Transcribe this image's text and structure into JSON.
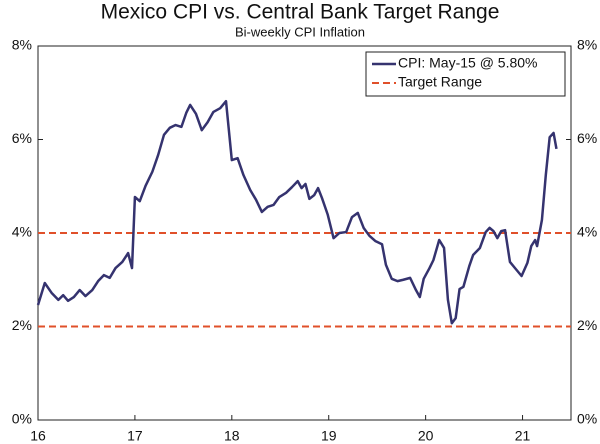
{
  "chart_data": {
    "type": "line",
    "title": "Mexico CPI vs. Central Bank Target Range",
    "subtitle": "Bi-weekly CPI Inflation",
    "x": [
      16.0,
      16.07,
      16.14,
      16.21,
      16.26,
      16.31,
      16.37,
      16.43,
      16.49,
      16.56,
      16.62,
      16.68,
      16.74,
      16.8,
      16.87,
      16.93,
      16.97,
      17.0,
      17.05,
      17.11,
      17.18,
      17.24,
      17.3,
      17.36,
      17.42,
      17.48,
      17.53,
      17.57,
      17.63,
      17.69,
      17.75,
      17.81,
      17.88,
      17.94,
      18.0,
      18.06,
      18.12,
      18.19,
      18.25,
      18.31,
      18.37,
      18.43,
      18.49,
      18.56,
      18.62,
      18.68,
      18.72,
      18.76,
      18.8,
      18.85,
      18.89,
      18.93,
      18.99,
      19.05,
      19.11,
      19.18,
      19.24,
      19.3,
      19.36,
      19.42,
      19.48,
      19.55,
      19.59,
      19.65,
      19.71,
      19.77,
      19.84,
      19.9,
      19.94,
      19.98,
      20.04,
      20.08,
      20.14,
      20.19,
      20.23,
      20.27,
      20.31,
      20.35,
      20.39,
      20.45,
      20.49,
      20.56,
      20.62,
      20.66,
      20.7,
      20.74,
      20.78,
      20.82,
      20.87,
      20.93,
      20.99,
      21.05,
      21.09,
      21.13,
      21.15,
      21.2,
      21.24,
      21.28,
      21.32,
      21.35
    ],
    "series": [
      {
        "name": "CPI: May-15 @ 5.80%",
        "color": "#35336f",
        "values": [
          2.46,
          2.93,
          2.72,
          2.57,
          2.67,
          2.55,
          2.63,
          2.78,
          2.65,
          2.78,
          2.97,
          3.1,
          3.04,
          3.25,
          3.38,
          3.57,
          3.25,
          4.77,
          4.68,
          5.01,
          5.31,
          5.67,
          6.1,
          6.25,
          6.31,
          6.27,
          6.57,
          6.74,
          6.55,
          6.2,
          6.37,
          6.59,
          6.67,
          6.82,
          5.56,
          5.6,
          5.24,
          4.92,
          4.71,
          4.45,
          4.56,
          4.6,
          4.77,
          4.86,
          4.98,
          5.11,
          4.96,
          5.05,
          4.73,
          4.81,
          4.96,
          4.75,
          4.39,
          3.89,
          4.0,
          4.02,
          4.34,
          4.43,
          4.11,
          3.94,
          3.83,
          3.76,
          3.32,
          3.02,
          2.97,
          3.0,
          3.04,
          2.78,
          2.63,
          3.02,
          3.25,
          3.42,
          3.85,
          3.68,
          2.57,
          2.07,
          2.18,
          2.8,
          2.85,
          3.29,
          3.53,
          3.68,
          4.02,
          4.11,
          4.04,
          3.89,
          4.04,
          4.06,
          3.38,
          3.23,
          3.08,
          3.36,
          3.72,
          3.85,
          3.72,
          4.28,
          5.24,
          6.05,
          6.14,
          5.8
        ]
      }
    ],
    "target_range": {
      "name": "Target Range",
      "color": "#e0502a",
      "values": [
        2,
        4
      ]
    },
    "xlim": [
      16,
      21.5
    ],
    "xticks": [
      16,
      17,
      18,
      19,
      20,
      21
    ],
    "ylim": [
      0,
      8
    ],
    "yticks": [
      {
        "value": 0,
        "label": "0%"
      },
      {
        "value": 2,
        "label": "2%"
      },
      {
        "value": 4,
        "label": "4%"
      },
      {
        "value": 6,
        "label": "6%"
      },
      {
        "value": 8,
        "label": "8%"
      }
    ],
    "legend": "upper right"
  }
}
